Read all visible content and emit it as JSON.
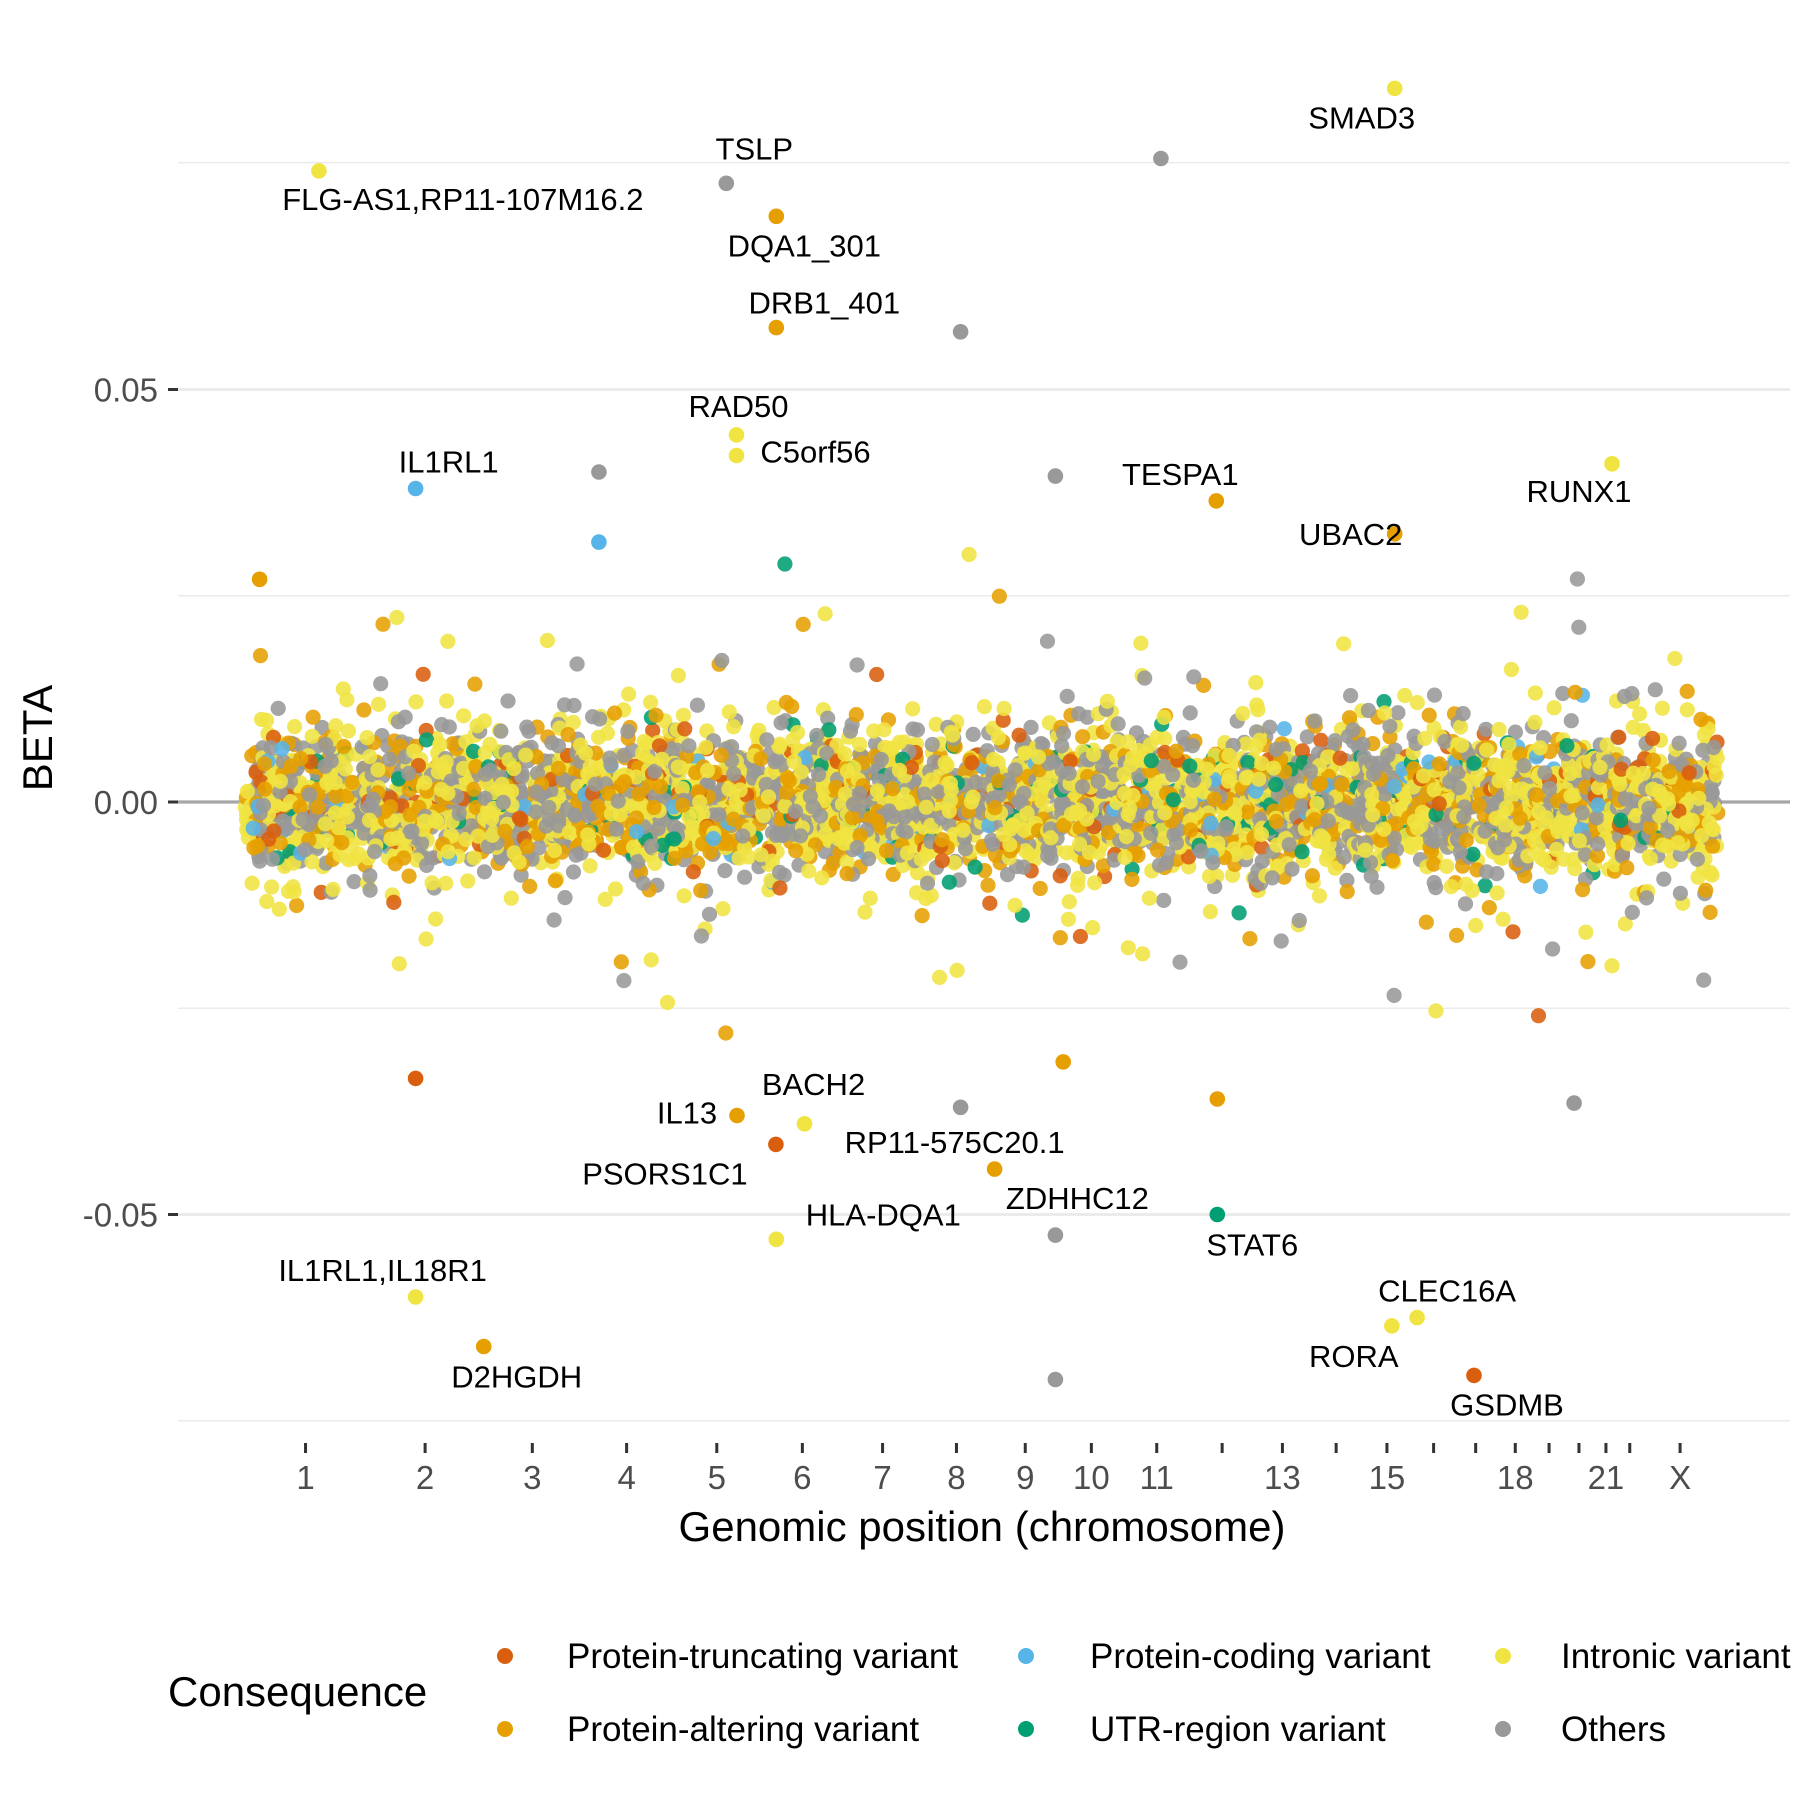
{
  "chart_data": {
    "type": "scatter",
    "title": "",
    "xlabel": "Genomic position (chromosome)",
    "ylabel": "BETA",
    "ylim": [
      -0.075,
      0.087
    ],
    "y_ticks": [
      {
        "value": 0.05,
        "label": "0.05"
      },
      {
        "value": 0.0,
        "label": "0.00"
      },
      {
        "value": -0.05,
        "label": "-0.05"
      }
    ],
    "grid": true,
    "legend_title": "Consequence",
    "legend_position": "bottom",
    "colors": {
      "Protein-truncating variant": "#d95f0e",
      "Protein-altering variant": "#e69f00",
      "Protein-coding variant": "#56b4e9",
      "UTR-region variant": "#009e73",
      "Intronic variant": "#f0e442",
      "Others": "#999999"
    },
    "legend": [
      "Protein-truncating variant",
      "Protein-altering variant",
      "Protein-coding variant",
      "UTR-region variant",
      "Intronic variant",
      "Others"
    ],
    "chromosomes": [
      {
        "name": "1",
        "start": 0,
        "end": 249,
        "label": "1"
      },
      {
        "name": "2",
        "start": 249,
        "end": 492,
        "label": "2"
      },
      {
        "name": "3",
        "start": 492,
        "end": 690,
        "label": "3"
      },
      {
        "name": "4",
        "start": 690,
        "end": 880,
        "label": "4"
      },
      {
        "name": "5",
        "start": 880,
        "end": 1061,
        "label": "5"
      },
      {
        "name": "6",
        "start": 1061,
        "end": 1232,
        "label": "6"
      },
      {
        "name": "7",
        "start": 1232,
        "end": 1391,
        "label": "7"
      },
      {
        "name": "8",
        "start": 1391,
        "end": 1536,
        "label": "8"
      },
      {
        "name": "9",
        "start": 1536,
        "end": 1674,
        "label": "9"
      },
      {
        "name": "10",
        "start": 1674,
        "end": 1808,
        "label": "10"
      },
      {
        "name": "11",
        "start": 1808,
        "end": 1943,
        "label": "11"
      },
      {
        "name": "12",
        "start": 1943,
        "end": 2077,
        "label": ""
      },
      {
        "name": "13",
        "start": 2077,
        "end": 2191,
        "label": "13"
      },
      {
        "name": "14",
        "start": 2191,
        "end": 2298,
        "label": ""
      },
      {
        "name": "15",
        "start": 2298,
        "end": 2400,
        "label": "15"
      },
      {
        "name": "16",
        "start": 2400,
        "end": 2490,
        "label": ""
      },
      {
        "name": "17",
        "start": 2490,
        "end": 2573,
        "label": ""
      },
      {
        "name": "18",
        "start": 2573,
        "end": 2653,
        "label": "18"
      },
      {
        "name": "19",
        "start": 2653,
        "end": 2712,
        "label": ""
      },
      {
        "name": "20",
        "start": 2712,
        "end": 2776,
        "label": ""
      },
      {
        "name": "21",
        "start": 2776,
        "end": 2823,
        "label": "21"
      },
      {
        "name": "22",
        "start": 2823,
        "end": 2874,
        "label": ""
      },
      {
        "name": "X",
        "start": 2874,
        "end": 3030,
        "label": "X"
      }
    ],
    "highlighted": [
      {
        "gene": "FLG-AS1,RP11-107M16.2",
        "chr": "1",
        "pos": 152,
        "beta": 0.0765,
        "consequence": "Intronic variant"
      },
      {
        "gene": "IL1RL1",
        "chr": "2",
        "pos": 102,
        "beta": 0.038,
        "consequence": "Protein-coding variant"
      },
      {
        "gene": "IL1RL1,IL18R1",
        "chr": "2",
        "pos": 102,
        "beta": -0.06,
        "consequence": "Intronic variant"
      },
      {
        "gene": "D2HGDH",
        "chr": "2",
        "pos": 242,
        "beta": -0.066,
        "consequence": "Protein-altering variant"
      },
      {
        "gene": "TSLP",
        "chr": "5",
        "pos": 110,
        "beta": 0.075,
        "consequence": "Others"
      },
      {
        "gene": "RAD50",
        "chr": "5",
        "pos": 131,
        "beta": 0.0445,
        "consequence": "Intronic variant"
      },
      {
        "gene": "C5orf56",
        "chr": "5",
        "pos": 131,
        "beta": 0.042,
        "consequence": "Intronic variant"
      },
      {
        "gene": "IL13",
        "chr": "5",
        "pos": 132,
        "beta": -0.038,
        "consequence": "Protein-altering variant"
      },
      {
        "gene": "DQA1_301",
        "chr": "6",
        "pos": 32,
        "beta": 0.071,
        "consequence": "Protein-altering variant"
      },
      {
        "gene": "DRB1_401",
        "chr": "6",
        "pos": 32,
        "beta": 0.0575,
        "consequence": "Protein-altering variant"
      },
      {
        "gene": "PSORS1C1",
        "chr": "6",
        "pos": 31,
        "beta": -0.0415,
        "consequence": "Protein-truncating variant"
      },
      {
        "gene": "HLA-DQA1",
        "chr": "6",
        "pos": 32,
        "beta": -0.053,
        "consequence": "Intronic variant"
      },
      {
        "gene": "BACH2",
        "chr": "6",
        "pos": 90,
        "beta": -0.039,
        "consequence": "Intronic variant"
      },
      {
        "gene": "RP11-575C20.1",
        "chr": "9",
        "pos": 6,
        "beta": -0.0445,
        "consequence": "Protein-altering variant"
      },
      {
        "gene": "ZDHHC12",
        "chr": "9",
        "pos": 131,
        "beta": -0.0525,
        "consequence": "Others"
      },
      {
        "gene": "TESPA1",
        "chr": "12",
        "pos": 55,
        "beta": 0.0365,
        "consequence": "Protein-altering variant"
      },
      {
        "gene": "STAT6",
        "chr": "12",
        "pos": 57,
        "beta": -0.05,
        "consequence": "UTR-region variant"
      },
      {
        "gene": "SMAD3",
        "chr": "15",
        "pos": 67,
        "beta": 0.0865,
        "consequence": "Intronic variant"
      },
      {
        "gene": "UBAC2",
        "chr": "15",
        "pos": 67,
        "beta": 0.0325,
        "consequence": "Protein-altering variant"
      },
      {
        "gene": "CLEC16A",
        "chr": "16",
        "pos": 11,
        "beta": -0.0625,
        "consequence": "Intronic variant"
      },
      {
        "gene": "RORA",
        "chr": "15",
        "pos": 61,
        "beta": -0.0635,
        "consequence": "Intronic variant"
      },
      {
        "gene": "GSDMB",
        "chr": "17",
        "pos": 38,
        "beta": -0.0695,
        "consequence": "Protein-truncating variant"
      },
      {
        "gene": "RUNX1",
        "chr": "21",
        "pos": 36,
        "beta": 0.041,
        "consequence": "Intronic variant"
      }
    ],
    "notable_unlabeled": [
      {
        "chr": "11",
        "pos": 76,
        "beta": 0.078,
        "consequence": "Others"
      },
      {
        "chr": "8",
        "pos": 81,
        "beta": 0.057,
        "consequence": "Others"
      },
      {
        "chr": "4",
        "pos": 38,
        "beta": 0.04,
        "consequence": "Others"
      },
      {
        "chr": "9",
        "pos": 131,
        "beta": 0.0395,
        "consequence": "Others"
      },
      {
        "chr": "4",
        "pos": 38,
        "beta": 0.0315,
        "consequence": "Protein-coding variant"
      },
      {
        "chr": "9",
        "pos": 131,
        "beta": -0.07,
        "consequence": "Others"
      },
      {
        "chr": "8",
        "pos": 81,
        "beta": -0.037,
        "consequence": "Others"
      },
      {
        "chr": "10",
        "pos": 9,
        "beta": -0.0315,
        "consequence": "Protein-altering variant"
      },
      {
        "chr": "12",
        "pos": 57,
        "beta": -0.036,
        "consequence": "Protein-altering variant"
      },
      {
        "chr": "1",
        "pos": 30,
        "beta": 0.027,
        "consequence": "Protein-altering variant"
      },
      {
        "chr": "2",
        "pos": 102,
        "beta": -0.0335,
        "consequence": "Protein-truncating variant"
      },
      {
        "chr": "20",
        "pos": 22,
        "beta": -0.0365,
        "consequence": "Others"
      }
    ],
    "background_variants": "dense cloud of ~5000 variants across all chromosomes, |BETA| mostly < 0.02"
  }
}
